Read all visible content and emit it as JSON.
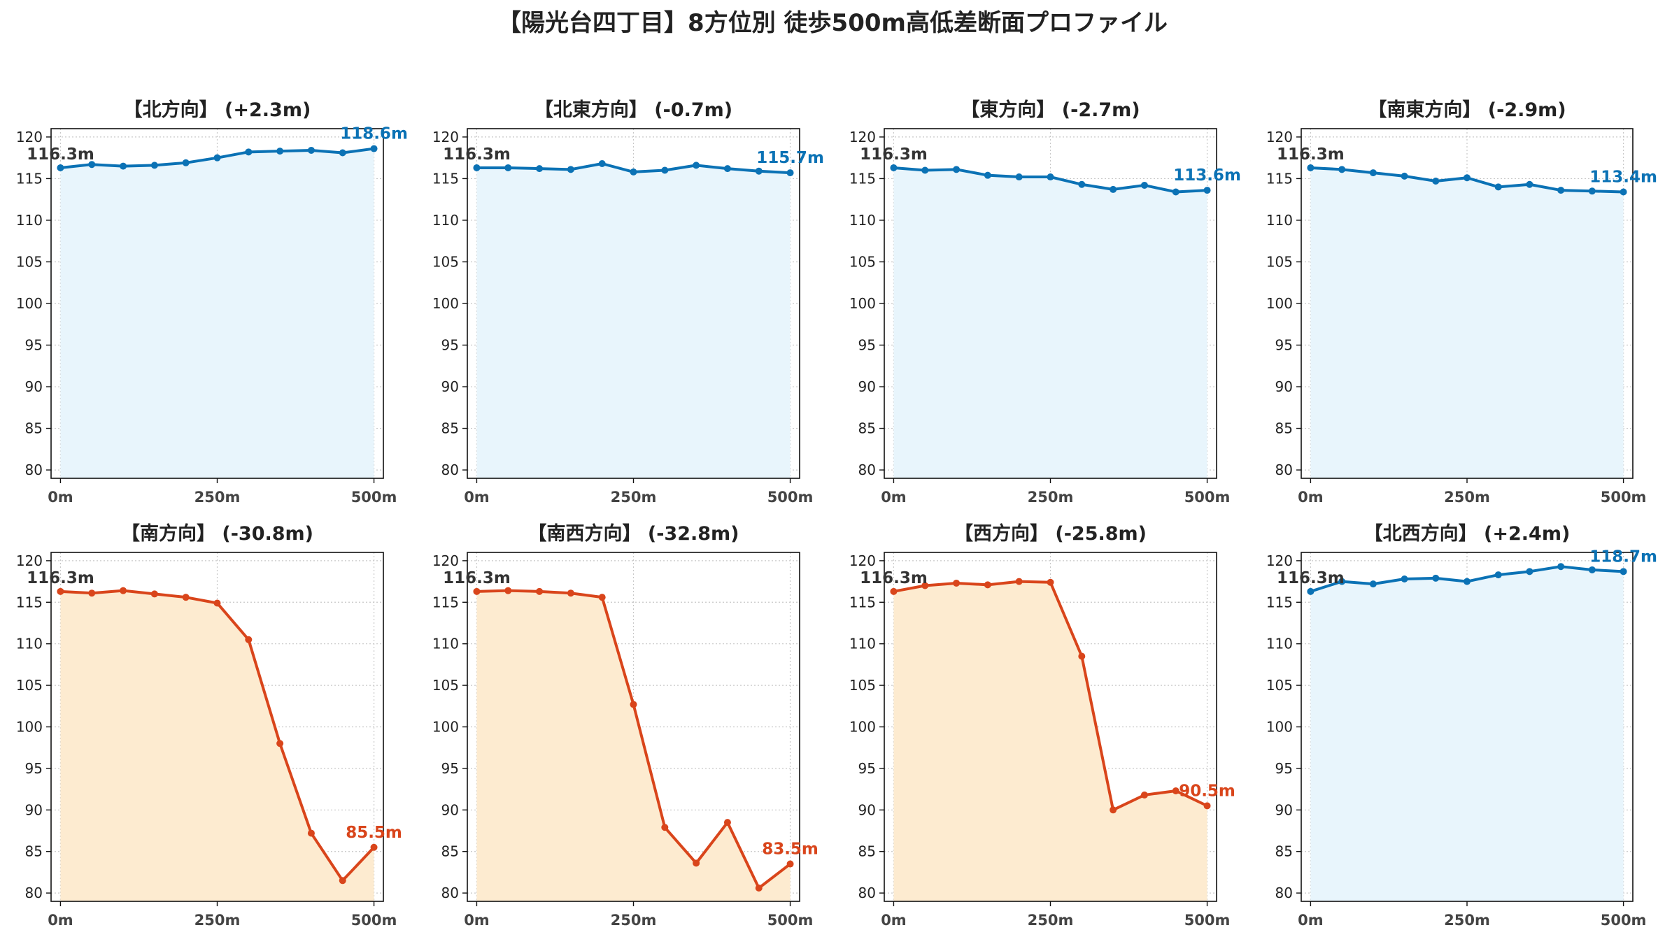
{
  "title": "【陽光台四丁目】8方位別 徒歩500m高低差断面プロファイル",
  "colors": {
    "up": "#1f77b4",
    "up_line": "#0b72b5",
    "up_fill": "#e8f5fc",
    "down_line": "#d9451b",
    "down_fill": "#fdebd0"
  },
  "chart_data": [
    {
      "type": "area",
      "title": "【北方向】 (+2.3m)",
      "trend": "up",
      "x": [
        0,
        50,
        100,
        150,
        200,
        250,
        300,
        350,
        400,
        450,
        500
      ],
      "values": [
        116.3,
        116.7,
        116.5,
        116.6,
        116.9,
        117.5,
        118.2,
        118.3,
        118.4,
        118.1,
        118.6
      ],
      "start_label": "116.3m",
      "end_label": "118.6m",
      "xticks": [
        0,
        250,
        500
      ],
      "xtick_labels": [
        "0m",
        "250m",
        "500m"
      ],
      "yticks": [
        80,
        85,
        90,
        95,
        100,
        105,
        110,
        115,
        120
      ],
      "ylim": [
        79,
        121
      ],
      "xlim": [
        -15,
        515
      ],
      "grid": true
    },
    {
      "type": "area",
      "title": "【北東方向】 (-0.7m)",
      "trend": "up",
      "x": [
        0,
        50,
        100,
        150,
        200,
        250,
        300,
        350,
        400,
        450,
        500
      ],
      "values": [
        116.3,
        116.3,
        116.2,
        116.1,
        116.8,
        115.8,
        116.0,
        116.6,
        116.2,
        115.9,
        115.7
      ],
      "start_label": "116.3m",
      "end_label": "115.7m",
      "xticks": [
        0,
        250,
        500
      ],
      "xtick_labels": [
        "0m",
        "250m",
        "500m"
      ],
      "yticks": [
        80,
        85,
        90,
        95,
        100,
        105,
        110,
        115,
        120
      ],
      "ylim": [
        79,
        121
      ],
      "xlim": [
        -15,
        515
      ],
      "grid": true
    },
    {
      "type": "area",
      "title": "【東方向】 (-2.7m)",
      "trend": "up",
      "x": [
        0,
        50,
        100,
        150,
        200,
        250,
        300,
        350,
        400,
        450,
        500
      ],
      "values": [
        116.3,
        116.0,
        116.1,
        115.4,
        115.2,
        115.2,
        114.3,
        113.7,
        114.2,
        113.4,
        113.6
      ],
      "start_label": "116.3m",
      "end_label": "113.6m",
      "xticks": [
        0,
        250,
        500
      ],
      "xtick_labels": [
        "0m",
        "250m",
        "500m"
      ],
      "yticks": [
        80,
        85,
        90,
        95,
        100,
        105,
        110,
        115,
        120
      ],
      "ylim": [
        79,
        121
      ],
      "xlim": [
        -15,
        515
      ],
      "grid": true
    },
    {
      "type": "area",
      "title": "【南東方向】 (-2.9m)",
      "trend": "up",
      "x": [
        0,
        50,
        100,
        150,
        200,
        250,
        300,
        350,
        400,
        450,
        500
      ],
      "values": [
        116.3,
        116.1,
        115.7,
        115.3,
        114.7,
        115.1,
        114.0,
        114.3,
        113.6,
        113.5,
        113.4
      ],
      "start_label": "116.3m",
      "end_label": "113.4m",
      "xticks": [
        0,
        250,
        500
      ],
      "xtick_labels": [
        "0m",
        "250m",
        "500m"
      ],
      "yticks": [
        80,
        85,
        90,
        95,
        100,
        105,
        110,
        115,
        120
      ],
      "ylim": [
        79,
        121
      ],
      "xlim": [
        -15,
        515
      ],
      "grid": true
    },
    {
      "type": "area",
      "title": "【南方向】 (-30.8m)",
      "trend": "down",
      "x": [
        0,
        50,
        100,
        150,
        200,
        250,
        300,
        350,
        400,
        450,
        500
      ],
      "values": [
        116.3,
        116.1,
        116.4,
        116.0,
        115.6,
        114.9,
        110.5,
        98.0,
        87.2,
        81.5,
        85.5
      ],
      "start_label": "116.3m",
      "end_label": "85.5m",
      "xticks": [
        0,
        250,
        500
      ],
      "xtick_labels": [
        "0m",
        "250m",
        "500m"
      ],
      "yticks": [
        80,
        85,
        90,
        95,
        100,
        105,
        110,
        115,
        120
      ],
      "ylim": [
        79,
        121
      ],
      "xlim": [
        -15,
        515
      ],
      "grid": true
    },
    {
      "type": "area",
      "title": "【南西方向】 (-32.8m)",
      "trend": "down",
      "x": [
        0,
        50,
        100,
        150,
        200,
        250,
        300,
        350,
        400,
        450,
        500
      ],
      "values": [
        116.3,
        116.4,
        116.3,
        116.1,
        115.6,
        102.7,
        87.9,
        83.6,
        88.5,
        80.6,
        83.5
      ],
      "start_label": "116.3m",
      "end_label": "83.5m",
      "xticks": [
        0,
        250,
        500
      ],
      "xtick_labels": [
        "0m",
        "250m",
        "500m"
      ],
      "yticks": [
        80,
        85,
        90,
        95,
        100,
        105,
        110,
        115,
        120
      ],
      "ylim": [
        79,
        121
      ],
      "xlim": [
        -15,
        515
      ],
      "grid": true
    },
    {
      "type": "area",
      "title": "【西方向】 (-25.8m)",
      "trend": "down",
      "x": [
        0,
        50,
        100,
        150,
        200,
        250,
        300,
        350,
        400,
        450,
        500
      ],
      "values": [
        116.3,
        117.0,
        117.3,
        117.1,
        117.5,
        117.4,
        108.5,
        90.0,
        91.8,
        92.3,
        90.5
      ],
      "start_label": "116.3m",
      "end_label": "90.5m",
      "xticks": [
        0,
        250,
        500
      ],
      "xtick_labels": [
        "0m",
        "250m",
        "500m"
      ],
      "yticks": [
        80,
        85,
        90,
        95,
        100,
        105,
        110,
        115,
        120
      ],
      "ylim": [
        79,
        121
      ],
      "xlim": [
        -15,
        515
      ],
      "grid": true
    },
    {
      "type": "area",
      "title": "【北西方向】 (+2.4m)",
      "trend": "up",
      "x": [
        0,
        50,
        100,
        150,
        200,
        250,
        300,
        350,
        400,
        450,
        500
      ],
      "values": [
        116.3,
        117.5,
        117.2,
        117.8,
        117.9,
        117.5,
        118.3,
        118.7,
        119.3,
        118.9,
        118.7
      ],
      "start_label": "116.3m",
      "end_label": "118.7m",
      "xticks": [
        0,
        250,
        500
      ],
      "xtick_labels": [
        "0m",
        "250m",
        "500m"
      ],
      "yticks": [
        80,
        85,
        90,
        95,
        100,
        105,
        110,
        115,
        120
      ],
      "ylim": [
        79,
        121
      ],
      "xlim": [
        -15,
        515
      ],
      "grid": true
    }
  ]
}
